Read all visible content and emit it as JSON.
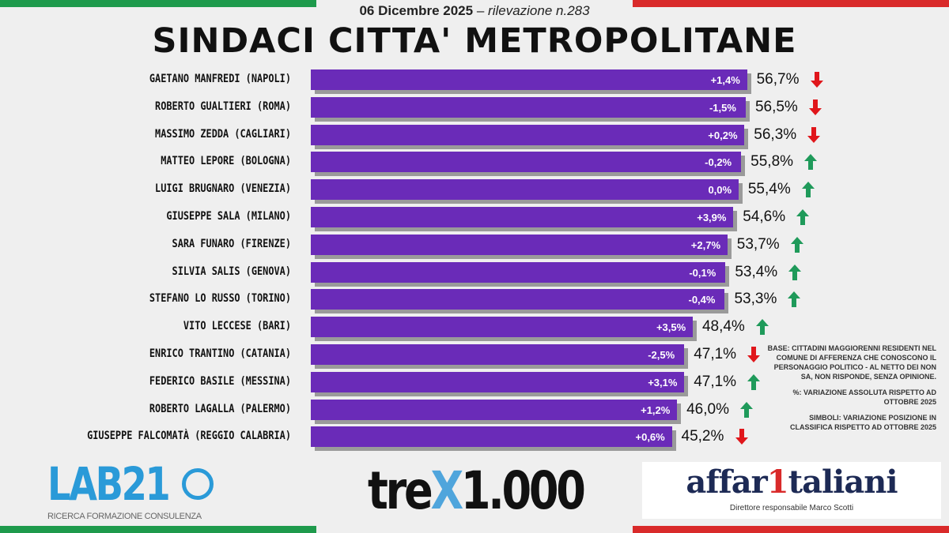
{
  "header": {
    "date": "06 Dicembre 2025",
    "survey": "rilevazione n.283",
    "separator": "–"
  },
  "colors": {
    "bar": "#6a2bb8",
    "up": "#1f9a5a",
    "down": "#e0161b",
    "green_flag": "#1e9a4c",
    "red_flag": "#d92a2a"
  },
  "chart_data": {
    "type": "bar",
    "orientation": "horizontal",
    "title": "SINDACI CITTA' METROPOLITANE",
    "categories": [
      "GAETANO MANFREDI (NAPOLI)",
      "ROBERTO GUALTIERI (ROMA)",
      "MASSIMO ZEDDA (CAGLIARI)",
      "MATTEO LEPORE (BOLOGNA)",
      "LUIGI BRUGNARO (VENEZIA)",
      "GIUSEPPE SALA (MILANO)",
      "SARA FUNARO (FIRENZE)",
      "SILVIA SALIS (GENOVA)",
      "STEFANO LO RUSSO (TORINO)",
      "VITO LECCESE (BARI)",
      "ENRICO TRANTINO (CATANIA)",
      "FEDERICO BASILE (MESSINA)",
      "ROBERTO LAGALLA (PALERMO)",
      "GIUSEPPE FALCOMATÀ (REGGIO CALABRIA)"
    ],
    "values": [
      56.7,
      56.5,
      56.3,
      55.8,
      55.4,
      54.6,
      53.7,
      53.4,
      53.3,
      48.4,
      47.1,
      47.1,
      46.0,
      45.2
    ],
    "value_labels": [
      "56,7%",
      "56,5%",
      "56,3%",
      "55,8%",
      "55,4%",
      "54,6%",
      "53,7%",
      "53,4%",
      "53,3%",
      "48,4%",
      "47,1%",
      "47,1%",
      "46,0%",
      "45,2%"
    ],
    "changes": [
      "+1,4%",
      "-1,5%",
      "+0,2%",
      "-0,2%",
      "0,0%",
      "+3,9%",
      "+2,7%",
      "-0,1%",
      "-0,4%",
      "+3,5%",
      "-2,5%",
      "+3,1%",
      "+1,2%",
      "+0,6%"
    ],
    "rank_trend": [
      "down",
      "down",
      "down",
      "up",
      "up",
      "up",
      "up",
      "up",
      "up",
      "up",
      "down",
      "up",
      "up",
      "down"
    ]
  },
  "notes": [
    "BASE: CITTADINI MAGGIORENNI RESIDENTI NEL COMUNE DI AFFERENZA CHE CONOSCONO IL PERSONAGGIO POLITICO - AL NETTO DEI NON SA, NON RISPONDE, SENZA OPINIONE.",
    "%: VARIAZIONE ASSOLUTA RISPETTO AD OTTOBRE 2025",
    "SIMBOLI: VARIAZIONE POSIZIONE IN CLASSIFICA RISPETTO AD OTTOBRE 2025"
  ],
  "logos": {
    "lab21": "LAB21",
    "lab21_tagline": "RICERCA FORMAZIONE CONSULENZA",
    "trex": "tre",
    "trex_num": "1.000",
    "affari_a": "affar",
    "affari_1": "1",
    "affari_b": "taliani",
    "affari_tagline": "Direttore responsabile Marco Scotti"
  }
}
